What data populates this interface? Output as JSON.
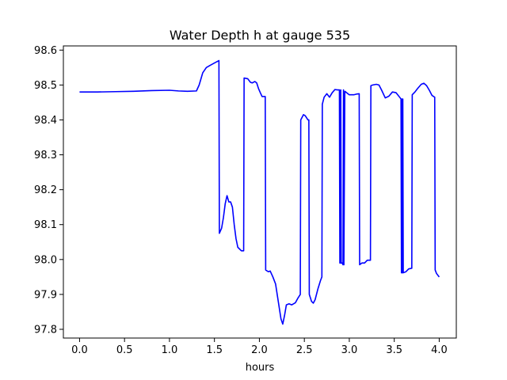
{
  "chart_data": {
    "type": "line",
    "title": "Water Depth h at gauge 535",
    "xlabel": "hours",
    "ylabel": "",
    "xlim": [
      -0.18,
      4.19
    ],
    "ylim": [
      97.775,
      98.612
    ],
    "x_ticks": [
      0.0,
      0.5,
      1.0,
      1.5,
      2.0,
      2.5,
      3.0,
      3.5,
      4.0
    ],
    "x_tick_labels": [
      "0.0",
      "0.5",
      "1.0",
      "1.5",
      "2.0",
      "2.5",
      "3.0",
      "3.5",
      "4.0"
    ],
    "y_ticks": [
      97.8,
      97.9,
      98.0,
      98.1,
      98.2,
      98.3,
      98.4,
      98.5,
      98.6
    ],
    "y_tick_labels": [
      "97.8",
      "97.9",
      "98.0",
      "98.1",
      "98.2",
      "98.3",
      "98.4",
      "98.5",
      "98.6"
    ],
    "grid": false,
    "series": [
      {
        "color": "#0000ff",
        "x": [
          0.0,
          0.2,
          0.4,
          0.6,
          0.8,
          1.0,
          1.1,
          1.2,
          1.3,
          1.33,
          1.37,
          1.41,
          1.45,
          1.5,
          1.55,
          1.555,
          1.58,
          1.6,
          1.62,
          1.64,
          1.66,
          1.68,
          1.7,
          1.72,
          1.74,
          1.76,
          1.8,
          1.825,
          1.83,
          1.87,
          1.9,
          1.92,
          1.95,
          1.97,
          1.99,
          2.01,
          2.03,
          2.065,
          2.07,
          2.1,
          2.12,
          2.15,
          2.18,
          2.21,
          2.24,
          2.26,
          2.28,
          2.3,
          2.33,
          2.36,
          2.4,
          2.43,
          2.455,
          2.46,
          2.49,
          2.51,
          2.54,
          2.55,
          2.555,
          2.58,
          2.6,
          2.62,
          2.65,
          2.68,
          2.695,
          2.7,
          2.72,
          2.75,
          2.78,
          2.81,
          2.84,
          2.87,
          2.89,
          2.895,
          2.9,
          2.905,
          2.91,
          2.915,
          2.92,
          2.93,
          2.935,
          2.94,
          2.95,
          3.0,
          3.05,
          3.08,
          3.11,
          3.115,
          3.14,
          3.17,
          3.2,
          3.235,
          3.24,
          3.26,
          3.3,
          3.33,
          3.36,
          3.4,
          3.44,
          3.48,
          3.52,
          3.56,
          3.575,
          3.58,
          3.585,
          3.59,
          3.595,
          3.6,
          3.63,
          3.66,
          3.695,
          3.7,
          3.73,
          3.76,
          3.8,
          3.83,
          3.86,
          3.89,
          3.92,
          3.95,
          3.955,
          3.97,
          4.0
        ],
        "y": [
          98.48,
          98.48,
          98.481,
          98.482,
          98.484,
          98.485,
          98.483,
          98.482,
          98.483,
          98.5,
          98.535,
          98.55,
          98.556,
          98.563,
          98.57,
          98.075,
          98.09,
          98.12,
          98.16,
          98.183,
          98.165,
          98.165,
          98.15,
          98.1,
          98.06,
          98.035,
          98.025,
          98.025,
          98.52,
          98.518,
          98.508,
          98.506,
          98.51,
          98.506,
          98.49,
          98.478,
          98.467,
          98.467,
          97.97,
          97.965,
          97.967,
          97.95,
          97.93,
          97.88,
          97.83,
          97.815,
          97.84,
          97.87,
          97.873,
          97.87,
          97.876,
          97.89,
          97.9,
          98.4,
          98.415,
          98.412,
          98.4,
          98.4,
          97.9,
          97.88,
          97.875,
          97.885,
          97.915,
          97.94,
          97.95,
          98.445,
          98.465,
          98.475,
          98.465,
          98.478,
          98.487,
          98.486,
          98.486,
          97.99,
          97.99,
          98.486,
          97.99,
          97.99,
          97.99,
          97.985,
          98.486,
          97.985,
          98.482,
          98.472,
          98.472,
          98.474,
          98.475,
          97.985,
          97.99,
          97.99,
          97.998,
          97.998,
          98.498,
          98.5,
          98.502,
          98.5,
          98.485,
          98.463,
          98.468,
          98.48,
          98.478,
          98.465,
          98.46,
          97.962,
          98.46,
          97.962,
          98.46,
          97.962,
          97.965,
          97.973,
          97.975,
          98.472,
          98.48,
          98.49,
          98.502,
          98.505,
          98.498,
          98.485,
          98.47,
          98.465,
          97.97,
          97.96,
          97.95
        ]
      }
    ]
  }
}
